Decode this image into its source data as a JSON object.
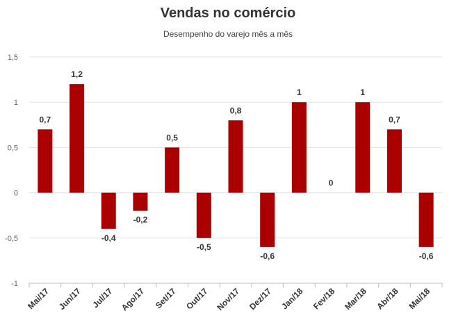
{
  "chart_data": {
    "type": "bar",
    "title": "Vendas no comércio",
    "subtitle": "Desempenho do varejo mês a mês",
    "xlabel": "",
    "ylabel": "",
    "categories": [
      "Mai/17",
      "Jun/17",
      "Jul/17",
      "Ago/17",
      "Set/17",
      "Out/17",
      "Nov/17",
      "Dez/17",
      "Jan/18",
      "Fev/18",
      "Mar/18",
      "Abr/18",
      "Mai/18"
    ],
    "values": [
      0.7,
      1.2,
      -0.4,
      -0.2,
      0.5,
      -0.5,
      0.8,
      -0.6,
      1,
      0,
      1,
      0.7,
      -0.6
    ],
    "data_labels": [
      "0,7",
      "1,2",
      "-0,4",
      "-0,2",
      "0,5",
      "-0,5",
      "0,8",
      "-0,6",
      "1",
      "0",
      "1",
      "0,7",
      "-0,6"
    ],
    "yticks": [
      1.5,
      1,
      0.5,
      0,
      -0.5,
      -1
    ],
    "ytick_labels": [
      "1,5",
      "1",
      "0,5",
      "0",
      "-0,5",
      "-1"
    ],
    "ylim": [
      -1,
      1.5
    ],
    "grid": true,
    "legend": "none",
    "bar_color": "#aa0000"
  }
}
